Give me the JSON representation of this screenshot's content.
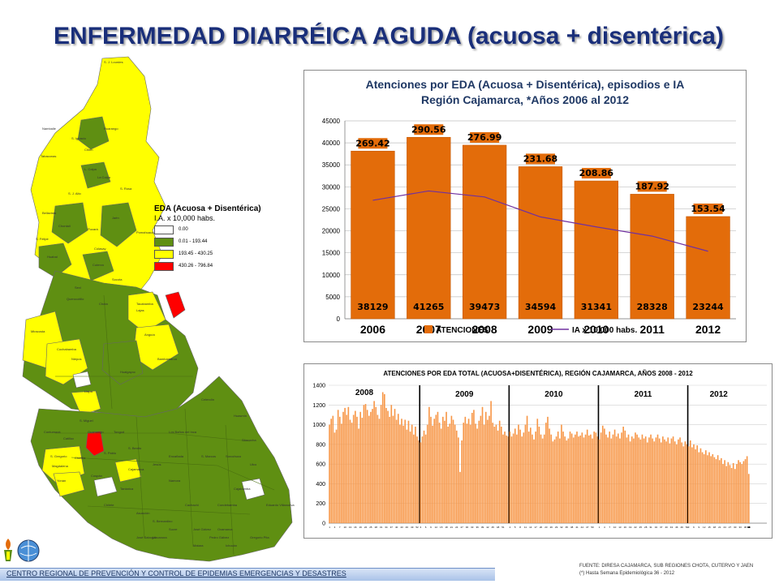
{
  "title": "ENFERMEDAD DIARRÉICA AGUDA (acuosa + disentérica)",
  "map": {
    "legend": {
      "title": "EDA (Acuosa + Disentérica)",
      "subtitle": "I.A. x 10,000 habs.",
      "items": [
        {
          "label": "0.00",
          "color": "#ffffff"
        },
        {
          "label": "0.01 - 193.44",
          "color": "#5f8f12"
        },
        {
          "label": "193.45 - 430.25",
          "color": "#ffff00"
        },
        {
          "label": "430.26 - 796.84",
          "color": "#ff0000"
        }
      ]
    },
    "district_labels": [
      "S. J. Lourdes",
      "Namballe",
      "Huarango",
      "S. Ignacio",
      "Chirin",
      "Tabaconas",
      "L. Coipa",
      "La Coipa",
      "S. Rosa",
      "S. J. Alto",
      "Bellavista",
      "Jaén",
      "Pucará",
      "Pomahuaca",
      "Colasay",
      "Chontali",
      "S. Felipe",
      "Huabal",
      "Cutervo",
      "Socota",
      "Sexi",
      "Querocotillo",
      "Chota",
      "Lajas",
      "Miracosta",
      "Cochabamba",
      "Tacabamba",
      "Anguía",
      "Niepos",
      "Llapa",
      "Bambamarca",
      "Hualgayoc",
      "Celendín",
      "S. Miguel",
      "Tongod",
      "Catilluc",
      "S. Pablo",
      "Cajamarca",
      "Chetilla",
      "Magdalena",
      "Cospán",
      "Namora",
      "Jesús",
      "Cajabamba",
      "S. Marcos",
      "Sitacocha",
      "Condebamba",
      "Cachachi",
      "Yonán",
      "S. Gregorio",
      "Contumazá",
      "Guzmango",
      "Tantarica",
      "S. Benito",
      "Chilete",
      "Asunción",
      "S. Bernardino",
      "Sucre",
      "José Gálvez",
      "Oxamarca",
      "Huasmín",
      "Sorochuco",
      "Utco",
      "Encañada",
      "Los Baños del Inca",
      "Llacanora",
      "Matara",
      "Ichocán",
      "Gregorio Pita",
      "Eduardo Villanueva",
      "Pedro Gálvez",
      "José Sabogal"
    ]
  },
  "chart_data": [
    {
      "type": "bar",
      "title": "Atenciones por EDA (Acuosa + Disentérica), episodios e IA",
      "subtitle": "Región Cajamarca, *Años 2006 al 2012",
      "categories": [
        "2006",
        "2007",
        "2008",
        "2009",
        "2010",
        "2011",
        "2012"
      ],
      "series": [
        {
          "name": "ATENCIONES",
          "type": "bar",
          "color": "#e36c0a",
          "values": [
            38129,
            41265,
            39473,
            34594,
            31341,
            28328,
            23244
          ]
        },
        {
          "name": "IA x 10.000 habs.",
          "type": "line",
          "color": "#7030a0",
          "values": [
            269.42,
            290.56,
            276.99,
            231.68,
            208.86,
            187.92,
            153.54
          ]
        }
      ],
      "ylim": [
        0,
        45000
      ],
      "yticks": [
        "0",
        "5000",
        "10000",
        "15000",
        "20000",
        "25000",
        "30000",
        "35000",
        "40000",
        "45000"
      ],
      "grid": true,
      "legend_position": "bottom"
    },
    {
      "type": "bar",
      "title": "ATENCIONES POR EDA TOTAL (ACUOSA+DISENTÉRICA), REGIÓN CAJAMARCA, AÑOS 2008 - 2012",
      "ylim": [
        0,
        1400
      ],
      "yticks": [
        "0",
        "200",
        "400",
        "600",
        "800",
        "1000",
        "1200",
        "1400"
      ],
      "color": "#f79646",
      "grid": true,
      "years": [
        {
          "label": "2008",
          "weeks": 53,
          "values": [
            1000,
            1060,
            1090,
            920,
            950,
            1150,
            1080,
            1010,
            1130,
            1170,
            1100,
            1180,
            1050,
            1020,
            1100,
            1140,
            1080,
            960,
            1130,
            1070,
            1200,
            1210,
            1150,
            1090,
            1130,
            1160,
            1240,
            1180,
            1100,
            1060,
            1200,
            1330,
            1310,
            1170,
            1140,
            1080,
            1200,
            1090,
            1160,
            1050,
            1110,
            1000,
            1060,
            990,
            1050,
            950,
            1040,
            930,
            1000,
            900,
            980,
            880,
            840
          ]
        },
        {
          "label": "2009",
          "weeks": 52,
          "values": [
            820,
            880,
            940,
            900,
            1000,
            1180,
            1080,
            990,
            1060,
            1100,
            1130,
            1020,
            960,
            1080,
            1040,
            1130,
            980,
            1010,
            1090,
            1050,
            1000,
            940,
            870,
            520,
            840,
            1020,
            1080,
            1010,
            1060,
            1000,
            1120,
            1150,
            1010,
            960,
            1040,
            1090,
            1180,
            1000,
            1130,
            1050,
            1090,
            1240,
            1020,
            980,
            1000,
            940,
            1040,
            980,
            900,
            930,
            890,
            880
          ]
        },
        {
          "label": "2010",
          "weeks": 52,
          "values": [
            930,
            880,
            910,
            960,
            900,
            1000,
            950,
            880,
            920,
            1000,
            1090,
            930,
            970,
            900,
            850,
            930,
            1060,
            980,
            900,
            860,
            900,
            1020,
            1080,
            960,
            900,
            830,
            850,
            880,
            930,
            860,
            1000,
            930,
            880,
            840,
            860,
            930,
            910,
            870,
            900,
            930,
            880,
            890,
            920,
            870,
            900,
            950,
            890,
            900,
            860,
            930,
            920,
            880
          ]
        },
        {
          "label": "2011",
          "weeks": 52,
          "values": [
            850,
            920,
            990,
            960,
            900,
            870,
            930,
            860,
            900,
            950,
            880,
            910,
            860,
            920,
            980,
            940,
            870,
            900,
            830,
            880,
            860,
            920,
            900,
            870,
            850,
            900,
            860,
            880,
            820,
            870,
            900,
            860,
            830,
            870,
            900,
            860,
            820,
            880,
            850,
            830,
            870,
            810,
            860,
            880,
            830,
            800,
            850,
            870,
            820,
            780,
            830,
            800
          ]
        },
        {
          "label": "2012",
          "weeks": 36,
          "values": [
            780,
            840,
            770,
            800,
            750,
            790,
            720,
            760,
            720,
            700,
            740,
            690,
            720,
            680,
            700,
            670,
            650,
            690,
            640,
            660,
            600,
            640,
            580,
            620,
            590,
            560,
            610,
            550,
            600,
            640,
            620,
            600,
            630,
            650,
            680,
            500
          ]
        }
      ],
      "x_tick_labels_per_year": [
        [
          "1",
          "4",
          "7",
          "10",
          "13",
          "16",
          "19",
          "22",
          "25",
          "28",
          "31",
          "34",
          "37",
          "40",
          "43",
          "46",
          "49",
          "52"
        ],
        [
          "3",
          "6",
          "9",
          "12",
          "15",
          "18",
          "21",
          "24",
          "27",
          "30",
          "33",
          "36",
          "39",
          "42",
          "45",
          "48",
          "51"
        ],
        [
          "2",
          "5",
          "8",
          "11",
          "14",
          "17",
          "20",
          "23",
          "26",
          "29",
          "32",
          "35",
          "38",
          "41",
          "44",
          "47",
          "50"
        ],
        [
          "1",
          "4",
          "7",
          "10",
          "13",
          "16",
          "19",
          "22",
          "25",
          "28",
          "31",
          "34",
          "37",
          "40",
          "43",
          "46",
          "49",
          "52"
        ],
        [
          "3",
          "6",
          "9",
          "12",
          "15",
          "18",
          "21",
          "24",
          "27",
          "30",
          "33",
          "36",
          "39",
          "42",
          "45",
          "48",
          "51"
        ]
      ]
    }
  ],
  "footer": {
    "institution": "CENTRO REGIONAL DE PREVENCIÓN Y CONTROL DE EPIDEMIAS EMERGENCIAS Y DESASTRES",
    "source_line1": "FUENTE: DIRESA CAJAMARCA, SUB REGIONES CHOTA, CUTERVO Y JAEN",
    "source_line2": "(*) Hasta Semana Epidemiológica 36 - 2012"
  }
}
